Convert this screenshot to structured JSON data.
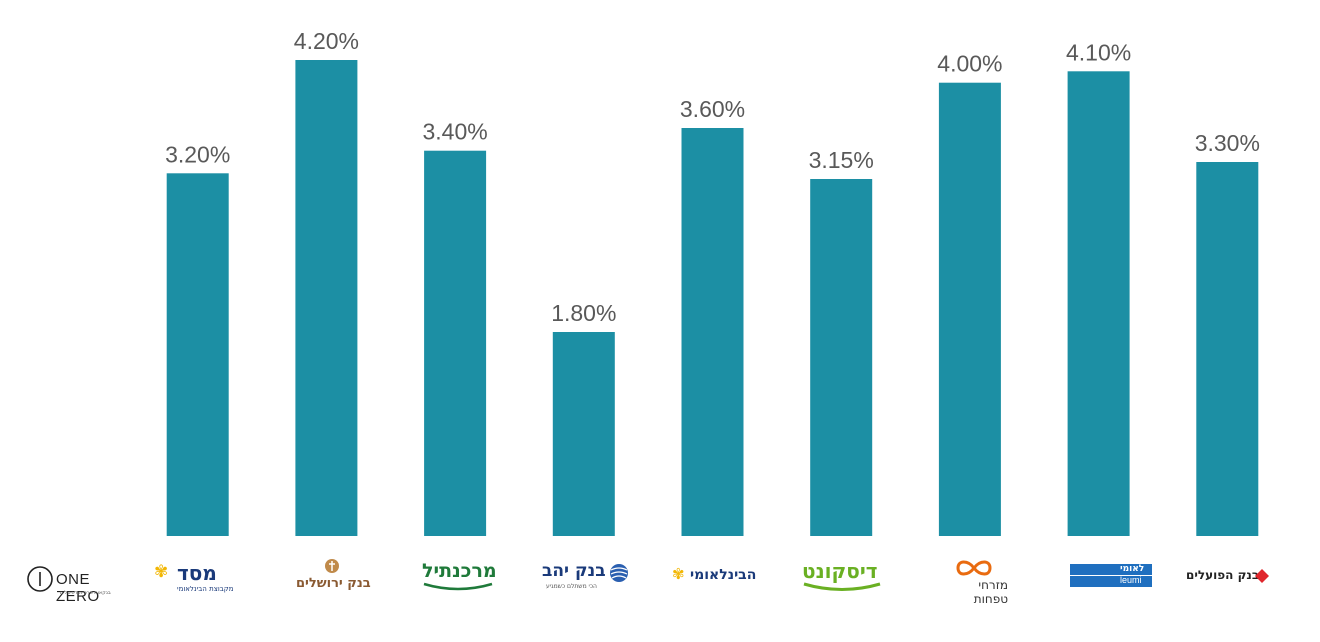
{
  "chart_data": {
    "type": "bar",
    "categories": [
      "ONE ZERO",
      "מסד",
      "בנק ירושלים",
      "מרכנתיל",
      "בנק יהב",
      "הבינלאומי",
      "דיסקונט",
      "מזרחי טפחות",
      "לאומי",
      "בנק הפועלים"
    ],
    "values": [
      null,
      3.2,
      4.2,
      3.4,
      1.8,
      3.6,
      3.15,
      4.0,
      4.1,
      3.3
    ],
    "data_labels": [
      "",
      "3.20%",
      "4.20%",
      "3.40%",
      "1.80%",
      "3.60%",
      "3.15%",
      "4.00%",
      "4.10%",
      "3.30%"
    ],
    "title": "",
    "xlabel": "",
    "ylabel": "",
    "ylim": [
      0,
      4.2
    ],
    "grid": false,
    "bar_color": "#1c8fa4",
    "label_color": "#595959"
  },
  "logos": {
    "onezero": {
      "name": "ONE ZERO",
      "tagline": "בנקאות פרטית דיגיטלית"
    },
    "masad": {
      "name": "מסד",
      "tagline": "מקבוצת הבינלאומי",
      "color": "#1a3a7a",
      "accent": "#f2b705"
    },
    "jerusalem": {
      "name": "בנק ירושלים",
      "color": "#8a5a32"
    },
    "mercantile": {
      "name": "מרכנתיל",
      "color": "#1f7a3a"
    },
    "yahav": {
      "name": "בנק יהב",
      "tagline": "הכי משתלם כשמגיע",
      "color": "#1a3a7a"
    },
    "fibi": {
      "name": "הבינלאומי",
      "color": "#1a3a7a",
      "accent": "#f2b705"
    },
    "discount": {
      "name": "דיסקונט",
      "color": "#6ab023"
    },
    "mizrahi": {
      "name": "מזרחי טפחות",
      "color": "#333333",
      "accent": "#e96b10"
    },
    "leumi": {
      "name": "לאומי",
      "latin": "leumi",
      "color": "#1f6fbf"
    },
    "hapoalim": {
      "name": "בנק הפועלים",
      "color": "#222222",
      "accent": "#e0262c"
    }
  }
}
